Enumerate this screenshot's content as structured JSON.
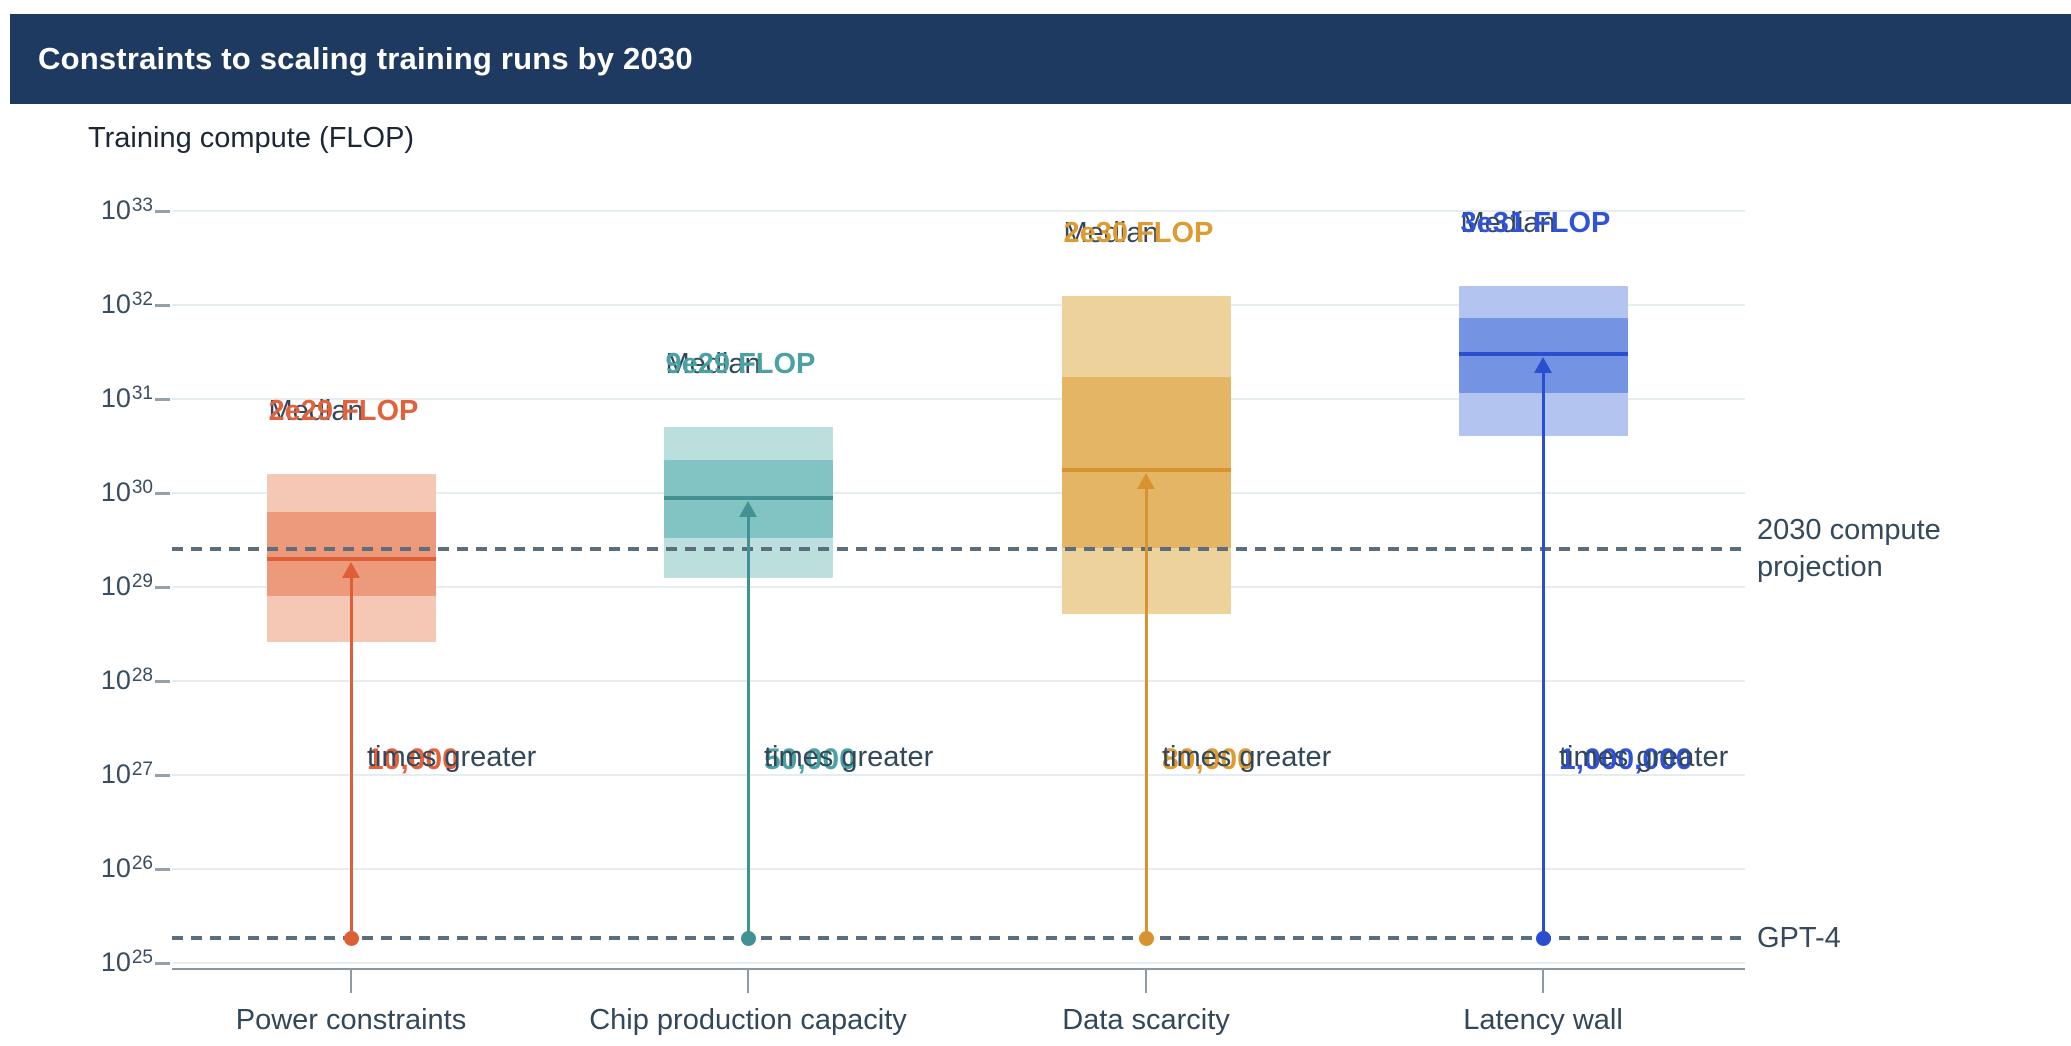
{
  "header": {
    "title": "Constraints to scaling training runs by 2030"
  },
  "chart_data": {
    "type": "box",
    "title": "Training compute (FLOP)",
    "ylabel": "Training compute (FLOP)",
    "y_axis": {
      "scale": "log10",
      "unit": "FLOP",
      "base": "10",
      "tick_exponents": [
        33,
        32,
        31,
        30,
        29,
        28,
        27,
        26,
        25
      ],
      "ylim_exp": [
        25,
        33
      ]
    },
    "grid": true,
    "categories": [
      "Power constraints",
      "Chip production capacity",
      "Data scarcity",
      "Latency wall"
    ],
    "series": [
      {
        "name": "Power constraints",
        "median_title": "Median",
        "median_label": "2e29 FLOP",
        "median_flop": "2e29",
        "median_exp": 29.3,
        "inner_range_flop": [
          "8e28",
          "6e29"
        ],
        "inner_range_exp": [
          28.9,
          29.8
        ],
        "outer_range_flop": [
          "3e28",
          "1.6e30"
        ],
        "outer_range_exp": [
          28.42,
          30.2
        ],
        "multiplier": "10,000",
        "multiplier_suffix": "times greater",
        "colors": {
          "outer": "#f4c8b5",
          "inner": "#ec9a7b",
          "accent": "#dd5f36",
          "label": "#e2623c"
        }
      },
      {
        "name": "Chip production capacity",
        "median_title": "Median",
        "median_label": "9e29 FLOP",
        "median_flop": "9e29",
        "median_exp": 29.95,
        "inner_range_flop": [
          "3e29",
          "2.2e30"
        ],
        "inner_range_exp": [
          29.52,
          30.35
        ],
        "outer_range_flop": [
          "1.3e29",
          "5e30"
        ],
        "outer_range_exp": [
          29.1,
          30.7
        ],
        "multiplier": "50,000",
        "multiplier_suffix": "times greater",
        "colors": {
          "outer": "#bbdfdd",
          "inner": "#82c4c3",
          "accent": "#429193",
          "label": "#4aa2a2"
        }
      },
      {
        "name": "Data scarcity",
        "median_title": "Median",
        "median_label": "2e30 FLOP",
        "median_flop": "2e30",
        "median_exp": 30.25,
        "inner_range_flop": [
          "2.6e29",
          "1.7e31"
        ],
        "inner_range_exp": [
          29.42,
          31.23
        ],
        "outer_range_flop": [
          "5e28",
          "1.3e32"
        ],
        "outer_range_exp": [
          28.71,
          32.1
        ],
        "multiplier": "80,000",
        "multiplier_suffix": "times greater",
        "colors": {
          "outer": "#eed29b",
          "inner": "#e5b566",
          "accent": "#d69330",
          "label": "#dd9b32"
        }
      },
      {
        "name": "Latency wall",
        "median_title": "Median",
        "median_label": "3e31 FLOP",
        "median_flop": "3e31",
        "median_exp": 31.48,
        "inner_range_flop": [
          "1.1e31",
          "7e31"
        ],
        "inner_range_exp": [
          31.06,
          31.86
        ],
        "outer_range_flop": [
          "4e30",
          "1.6e32"
        ],
        "outer_range_exp": [
          30.61,
          32.2
        ],
        "multiplier": "1,000,000",
        "multiplier_suffix": "times greater",
        "colors": {
          "outer": "#b2c4ef",
          "inner": "#7493e2",
          "accent": "#2a4ed0",
          "label": "#2f52d7"
        }
      }
    ],
    "reference_lines": [
      {
        "id": "projection-2030",
        "label_lines": [
          "2030 compute",
          "projection"
        ],
        "exp": 29.4,
        "color": "#5c6e7e"
      },
      {
        "id": "gpt4",
        "label_lines": [
          "GPT-4"
        ],
        "exp": 25.27,
        "color": "#5c6e7e"
      }
    ]
  }
}
